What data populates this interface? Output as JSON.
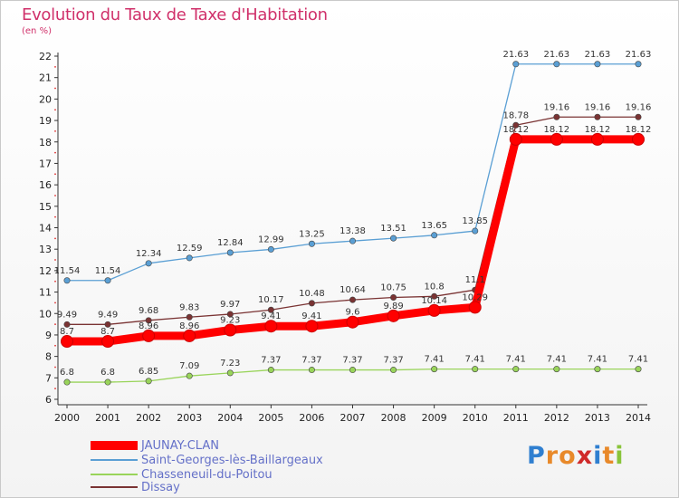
{
  "chart_data": {
    "type": "line",
    "title": "Evolution du Taux de Taxe d'Habitation",
    "subtitle": "(en %)",
    "x": [
      "2000",
      "2001",
      "2002",
      "2003",
      "2004",
      "2005",
      "2006",
      "2007",
      "2008",
      "2009",
      "2010",
      "2011",
      "2012",
      "2013",
      "2014"
    ],
    "ylim": [
      6,
      22
    ],
    "yticks": [
      6,
      7,
      8,
      9,
      10,
      11,
      12,
      13,
      14,
      15,
      16,
      17,
      18,
      19,
      20,
      21,
      22
    ],
    "grid": false,
    "legend_position": "bottom-left",
    "series": [
      {
        "name": "Saint-Georges-lès-Baillargeaux",
        "color": "#5a9fd4",
        "values": [
          11.54,
          11.54,
          12.34,
          12.59,
          12.84,
          12.99,
          13.25,
          13.38,
          13.51,
          13.65,
          13.85,
          21.63,
          21.63,
          21.63,
          21.63
        ],
        "labels": [
          "11.54",
          "11.54",
          "12.34",
          "12.59",
          "12.84",
          "12.99",
          "13.25",
          "13.38",
          "13.51",
          "13.65",
          "13.85",
          "21.63",
          "21.63",
          "21.63",
          "21.63"
        ]
      },
      {
        "name": "Dissay",
        "color": "#7a3333",
        "values": [
          9.49,
          9.49,
          9.68,
          9.83,
          9.97,
          10.17,
          10.48,
          10.64,
          10.75,
          10.8,
          11.1,
          18.78,
          19.16,
          19.16,
          19.16
        ],
        "labels": [
          "9.49",
          "9.49",
          "9.68",
          "9.83",
          "9.97",
          "10.17",
          "10.48",
          "10.64",
          "10.75",
          "10.8",
          "11.1",
          "18.78",
          "19.16",
          "19.16",
          "19.16"
        ]
      },
      {
        "name": "JAUNAY-CLAN",
        "color": "#ff0000",
        "values": [
          8.7,
          8.7,
          8.96,
          8.96,
          9.23,
          9.41,
          9.41,
          9.6,
          9.89,
          10.14,
          10.29,
          18.12,
          18.12,
          18.12,
          18.12
        ],
        "labels": [
          "8.7",
          "8.7",
          "8.96",
          "8.96",
          "9.23",
          "9.41",
          "9.41",
          "9.6",
          "9.89",
          "10.14",
          "10.29",
          "18.12",
          "18.12",
          "18.12",
          "18.12"
        ]
      },
      {
        "name": "Chasseneuil-du-Poitou",
        "color": "#99d45a",
        "values": [
          6.8,
          6.8,
          6.85,
          7.09,
          7.23,
          7.37,
          7.37,
          7.37,
          7.37,
          7.41,
          7.41,
          7.41,
          7.41,
          7.41,
          7.41
        ],
        "labels": [
          "6.8",
          "6.8",
          "6.85",
          "7.09",
          "7.23",
          "7.37",
          "7.37",
          "7.37",
          "7.37",
          "7.41",
          "7.41",
          "7.41",
          "7.41",
          "7.41",
          "7.41"
        ]
      }
    ]
  },
  "legend": {
    "items": [
      {
        "label": "JAUNAY-CLAN",
        "color": "#ff0000"
      },
      {
        "label": "Saint-Georges-lès-Baillargeaux",
        "color": "#5a9fd4"
      },
      {
        "label": "Chasseneuil-du-Poitou",
        "color": "#99d45a"
      },
      {
        "label": "Dissay",
        "color": "#7a3333"
      }
    ]
  },
  "logo": {
    "letters": [
      "P",
      "r",
      "o",
      "x",
      "i",
      "t",
      "i"
    ],
    "colors": [
      "#2f7fd0",
      "#e8892a",
      "#e8892a",
      "#d02a2a",
      "#2f7fd0",
      "#e8892a",
      "#89c43a"
    ]
  }
}
